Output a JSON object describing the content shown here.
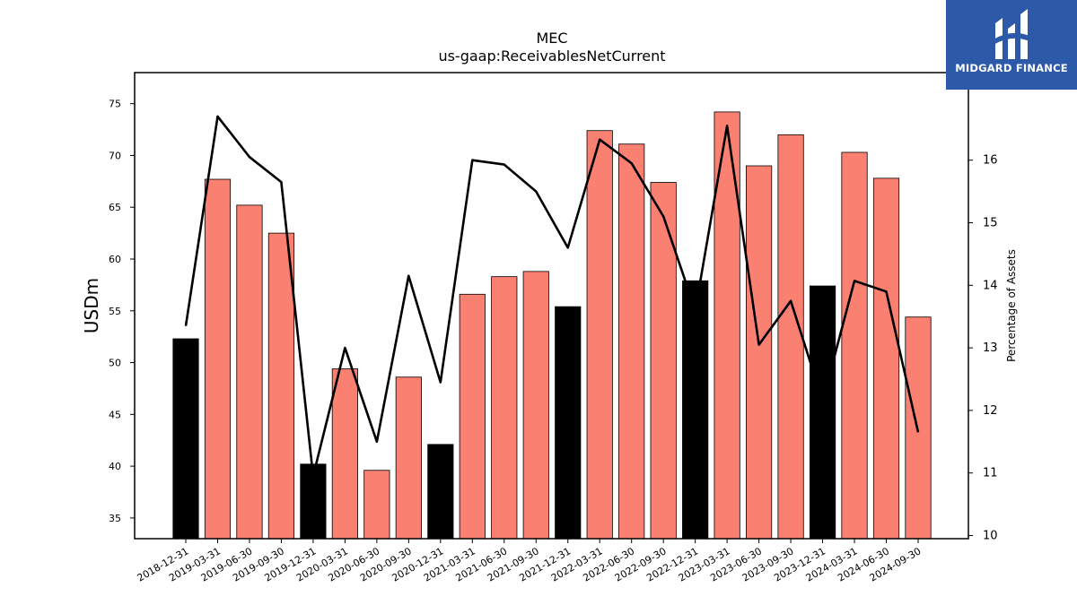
{
  "chart_data": {
    "type": "bar",
    "title": "MEC",
    "subtitle": "us-gaap:ReceivablesNetCurrent",
    "ylabel": "USDm",
    "y2label": "Percentage of Assets",
    "ylim": [
      33,
      78
    ],
    "y2lim": [
      9.95,
      17.4
    ],
    "yticks": [
      35,
      40,
      45,
      50,
      55,
      60,
      65,
      70,
      75
    ],
    "y2ticks": [
      10,
      11,
      12,
      13,
      14,
      15,
      16
    ],
    "categories": [
      "2018-12-31",
      "2019-03-31",
      "2019-06-30",
      "2019-09-30",
      "2019-12-31",
      "2020-03-31",
      "2020-06-30",
      "2020-09-30",
      "2020-12-31",
      "2021-03-31",
      "2021-06-30",
      "2021-09-30",
      "2021-12-31",
      "2022-03-31",
      "2022-06-30",
      "2022-09-30",
      "2022-12-31",
      "2023-03-31",
      "2023-06-30",
      "2023-09-30",
      "2023-12-31",
      "2024-03-31",
      "2024-06-30",
      "2024-09-30"
    ],
    "series": [
      {
        "kind": "bar",
        "axis": "left",
        "values": [
          52.3,
          67.7,
          65.2,
          62.5,
          40.2,
          49.4,
          39.6,
          48.6,
          42.1,
          56.6,
          58.3,
          58.8,
          55.4,
          72.4,
          71.1,
          67.4,
          57.9,
          74.2,
          69.0,
          72.0,
          57.4,
          70.3,
          67.8,
          54.4
        ],
        "highlight": [
          true,
          false,
          false,
          false,
          true,
          false,
          false,
          false,
          true,
          false,
          false,
          false,
          true,
          false,
          false,
          false,
          true,
          false,
          false,
          false,
          true,
          false,
          false,
          false
        ]
      },
      {
        "kind": "line",
        "axis": "right",
        "values": [
          13.35,
          16.7,
          16.05,
          15.65,
          10.95,
          13.0,
          11.5,
          14.15,
          12.45,
          16.0,
          15.93,
          15.5,
          14.6,
          16.33,
          15.95,
          15.1,
          13.6,
          16.55,
          13.05,
          13.75,
          12.15,
          14.07,
          13.9,
          11.65
        ]
      }
    ],
    "colors": {
      "bar": "#fa8072",
      "bar_highlight": "#000000",
      "line": "#000000",
      "edge": "#000000"
    },
    "grid": false,
    "legend": "none"
  },
  "brand": {
    "name": "MIDGARD FINANCE",
    "logo_icon": "midgard-logo-icon",
    "bg": "#2d5aa8"
  }
}
